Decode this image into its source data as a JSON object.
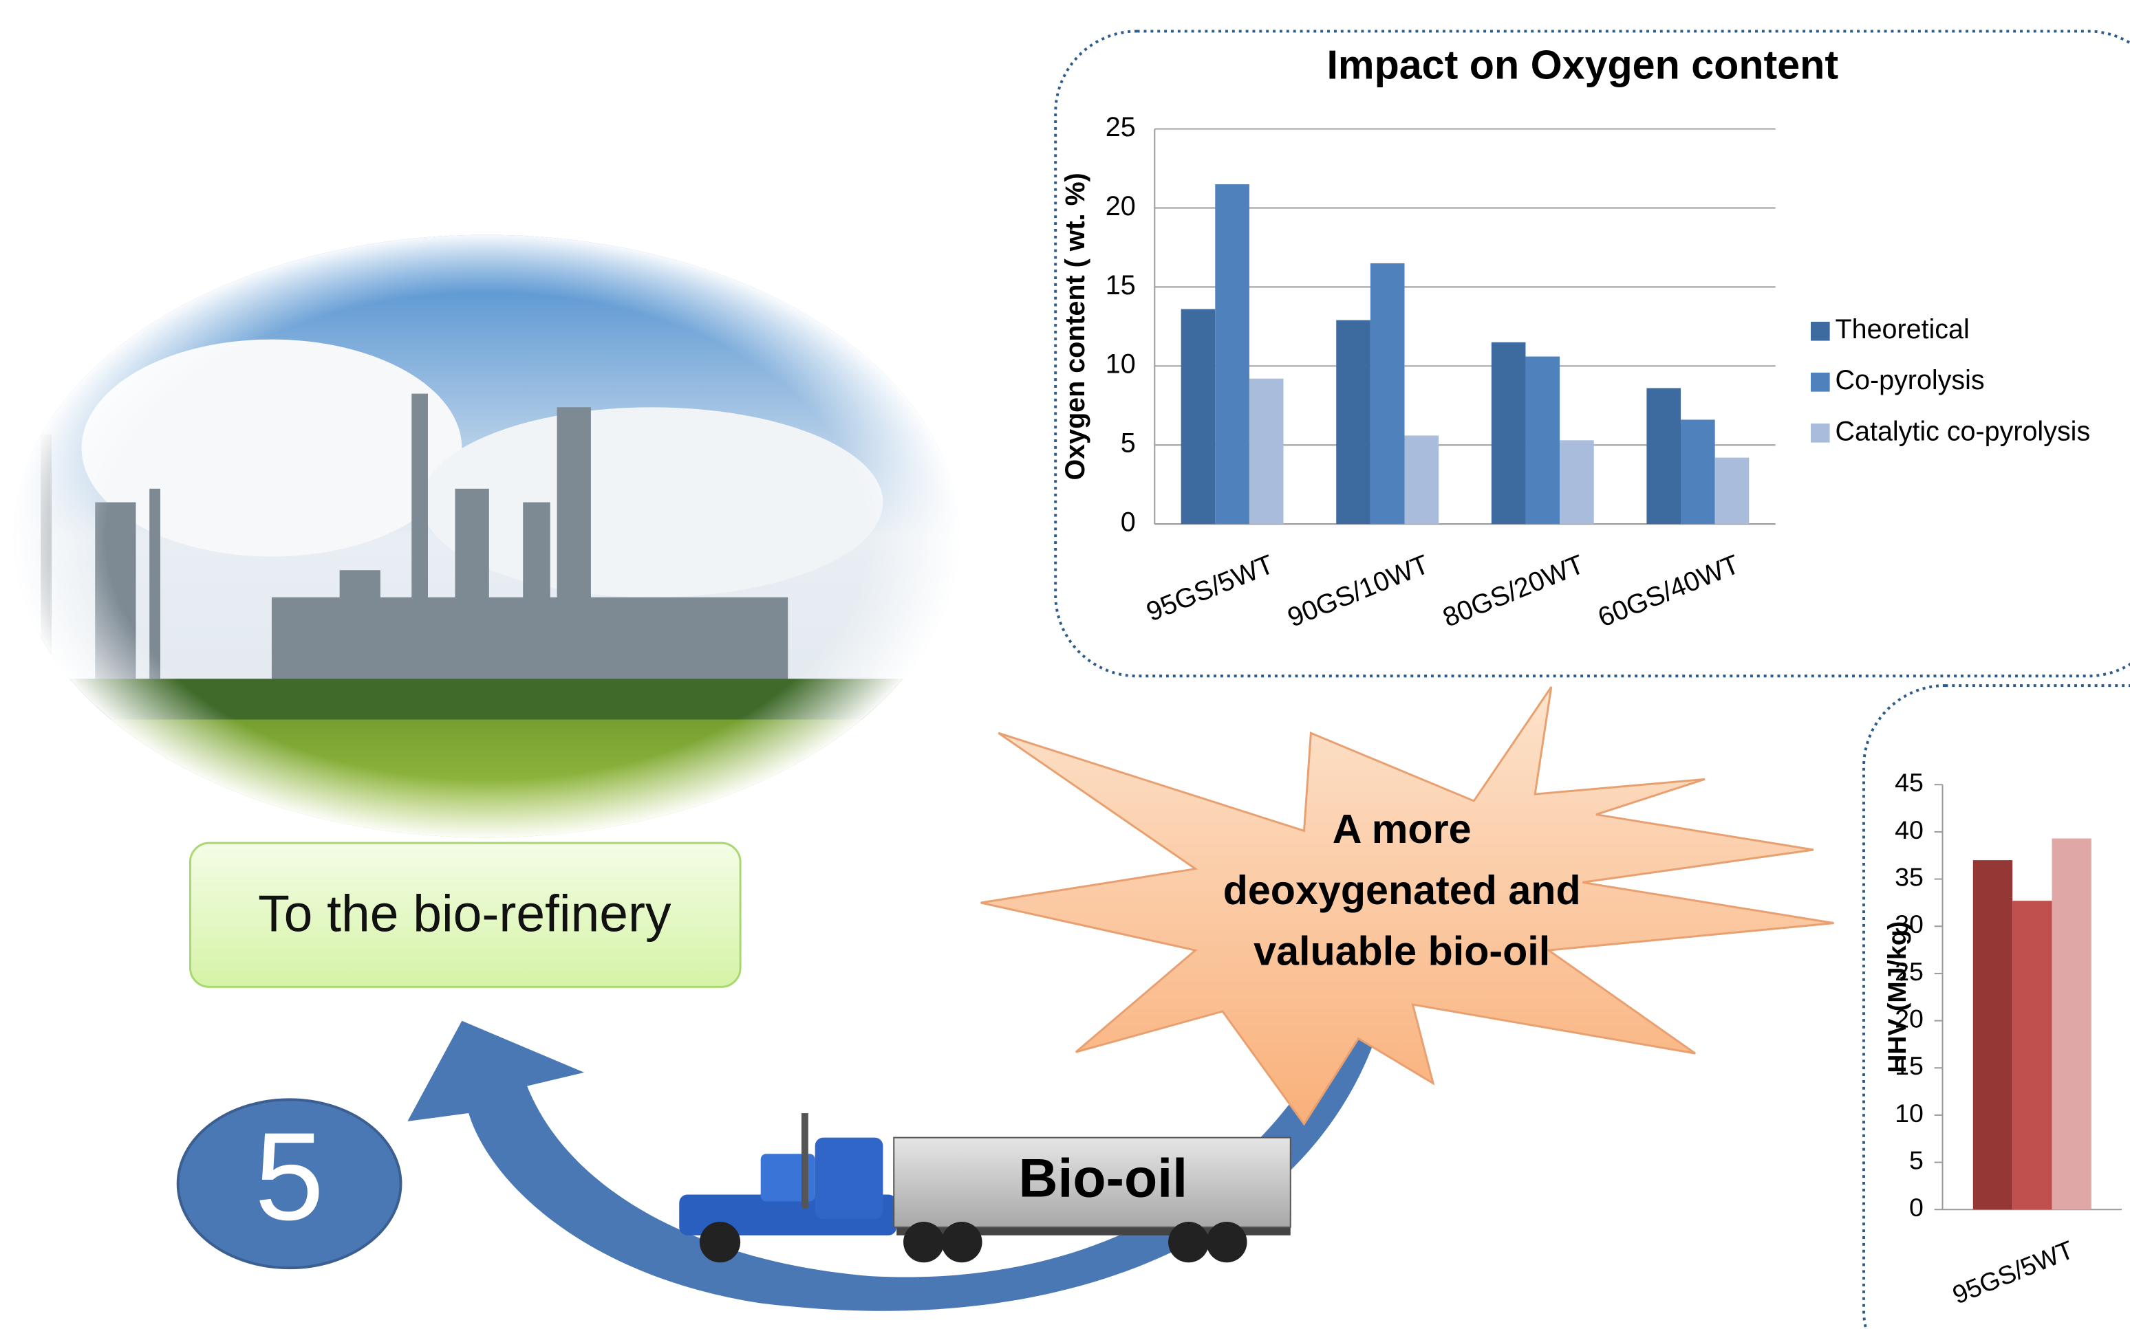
{
  "refinery_label": "To the bio-refinery",
  "step_number": "5",
  "starburst_text": [
    "A more",
    "deoxygenated and",
    "valuable bio-oil"
  ],
  "truck_label": "Bio-oil",
  "chart_data": [
    {
      "type": "bar",
      "title": "Impact on Oxygen content",
      "y_label": "Oxygen content ( wt. %)",
      "categories": [
        "95GS/5WT",
        "90GS/10WT",
        "80GS/20WT",
        "60GS/40WT"
      ],
      "series": [
        {
          "name": "Theoretical",
          "color": "#3d6a9f",
          "values": [
            13.6,
            12.9,
            11.5,
            8.6
          ]
        },
        {
          "name": "Co-pyrolysis",
          "color": "#4f81bd",
          "values": [
            21.5,
            16.5,
            10.6,
            6.6
          ]
        },
        {
          "name": "Catalytic co-pyrolysis",
          "color": "#a9bcdc",
          "values": [
            9.2,
            5.6,
            5.3,
            4.2
          ]
        }
      ],
      "ylim": [
        0,
        25
      ],
      "yticks": [
        0,
        5,
        10,
        15,
        20,
        25
      ],
      "grid": true
    },
    {
      "type": "bar",
      "y_label": "HHV (MJ/kg)",
      "categories": [
        "95GS/5WT"
      ],
      "series": [
        {
          "color": "#953735",
          "values": [
            37
          ]
        },
        {
          "color": "#c0504d",
          "values": [
            32.7
          ]
        },
        {
          "color": "#dfa8a7",
          "values": [
            39.3
          ]
        }
      ],
      "ylim": [
        0,
        45
      ],
      "yticks": [
        0,
        5,
        10,
        15,
        20,
        25,
        30,
        35,
        40,
        45
      ],
      "grid": false
    }
  ]
}
